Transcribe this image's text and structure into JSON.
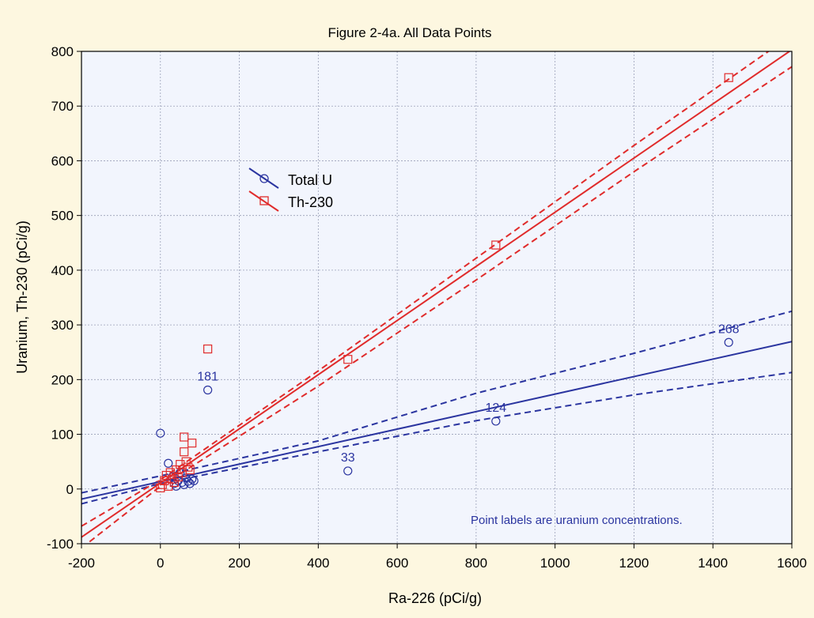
{
  "chart_data": {
    "type": "scatter",
    "title": "Figure 2-4a. All Data Points",
    "xlabel": "Ra-226 (pCi/g)",
    "ylabel": "Uranium, Th-230 (pCi/g)",
    "xlim": [
      -200,
      1600
    ],
    "ylim": [
      -100,
      800
    ],
    "xticks": [
      -200,
      0,
      200,
      400,
      600,
      800,
      1000,
      1200,
      1400,
      1600
    ],
    "yticks": [
      -100,
      0,
      100,
      200,
      300,
      400,
      500,
      600,
      700,
      800
    ],
    "grid": true,
    "legend_position": "upper-left",
    "annotation": "Point labels are uranium concentrations.",
    "series": [
      {
        "name": "Total U",
        "color": "#2b35a0",
        "marker": "circle",
        "points": [
          [
            0,
            102
          ],
          [
            20,
            47
          ],
          [
            30,
            22
          ],
          [
            35,
            10
          ],
          [
            40,
            5
          ],
          [
            45,
            15
          ],
          [
            50,
            30
          ],
          [
            55,
            12
          ],
          [
            60,
            8
          ],
          [
            65,
            20
          ],
          [
            70,
            14
          ],
          [
            75,
            10
          ],
          [
            80,
            18
          ],
          [
            85,
            15
          ],
          [
            120,
            181
          ],
          [
            475,
            33
          ],
          [
            850,
            124
          ],
          [
            1440,
            268
          ]
        ],
        "point_labels": [
          {
            "x": 120,
            "y": 181,
            "label": "181"
          },
          {
            "x": 475,
            "y": 33,
            "label": "33"
          },
          {
            "x": 850,
            "y": 124,
            "label": "124"
          },
          {
            "x": 1440,
            "y": 268,
            "label": "268"
          }
        ],
        "fit": {
          "intercept": 13.5,
          "slope": 0.16
        },
        "band_lower": [
          [
            -200,
            -27
          ],
          [
            0,
            10
          ],
          [
            400,
            68
          ],
          [
            800,
            125
          ],
          [
            1200,
            172
          ],
          [
            1600,
            213
          ]
        ],
        "band_upper": [
          [
            -200,
            -7
          ],
          [
            0,
            24
          ],
          [
            400,
            88
          ],
          [
            800,
            175
          ],
          [
            1200,
            248
          ],
          [
            1600,
            325
          ]
        ]
      },
      {
        "name": "Th-230",
        "color": "#e02b2b",
        "marker": "square",
        "points": [
          [
            0,
            2
          ],
          [
            5,
            8
          ],
          [
            10,
            15
          ],
          [
            15,
            25
          ],
          [
            20,
            5
          ],
          [
            25,
            30
          ],
          [
            30,
            18
          ],
          [
            35,
            12
          ],
          [
            40,
            35
          ],
          [
            45,
            22
          ],
          [
            50,
            45
          ],
          [
            55,
            30
          ],
          [
            60,
            68
          ],
          [
            60,
            95
          ],
          [
            65,
            50
          ],
          [
            70,
            40
          ],
          [
            75,
            35
          ],
          [
            80,
            84
          ],
          [
            120,
            256
          ],
          [
            475,
            237
          ],
          [
            850,
            446
          ],
          [
            1440,
            752
          ]
        ],
        "fit": {
          "intercept": 11,
          "slope": 0.495
        },
        "band_lower": [
          [
            -200,
            -108
          ],
          [
            0,
            5
          ],
          [
            400,
            188
          ],
          [
            800,
            382
          ],
          [
            1200,
            580
          ],
          [
            1600,
            772
          ]
        ],
        "band_upper": [
          [
            -200,
            -68
          ],
          [
            0,
            17
          ],
          [
            400,
            216
          ],
          [
            800,
            422
          ],
          [
            1200,
            628
          ],
          [
            1600,
            830
          ]
        ]
      }
    ]
  }
}
